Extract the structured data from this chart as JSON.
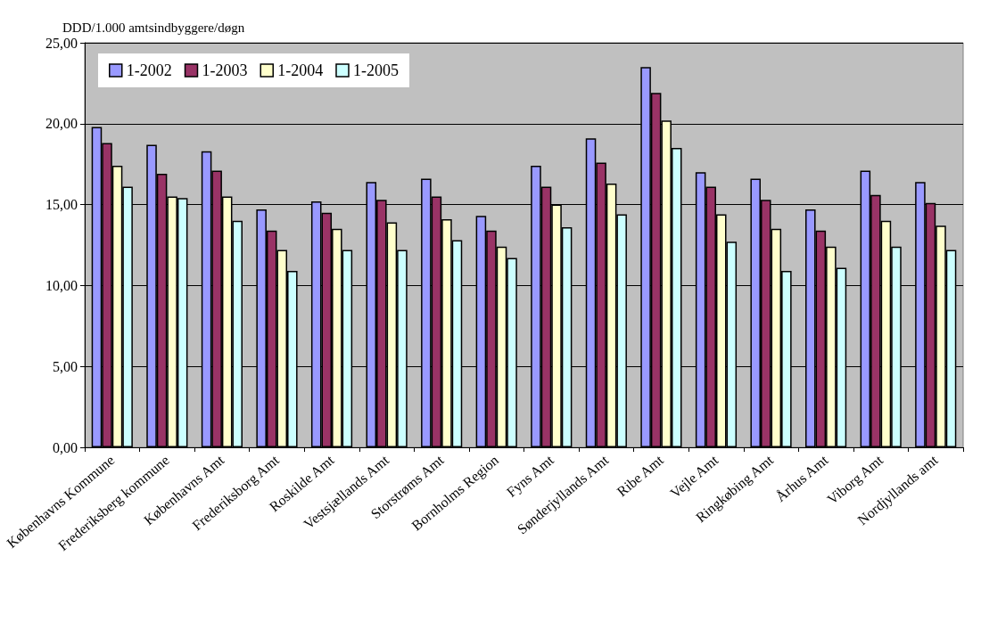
{
  "chart_data": {
    "type": "bar",
    "ylabel": "DDD/1.000 amtsindbyggere/døgn",
    "categories": [
      "Københavns Kommune",
      "Frederiksberg kommune",
      "Københavns Amt",
      "Frederiksborg Amt",
      "Roskilde Amt",
      "Vestsjællands Amt",
      "Storstrøms Amt",
      "Bornholms Region",
      "Fyns Amt",
      "Sønderjyllands Amt",
      "Ribe Amt",
      "Vejle Amt",
      "Ringkøbing Amt",
      "Århus Amt",
      "Viborg Amt",
      "Nordjyllands amt"
    ],
    "series": [
      {
        "name": "1-2002",
        "color": "#9999ff",
        "values": [
          19.8,
          18.7,
          18.3,
          14.7,
          15.2,
          16.4,
          16.6,
          14.3,
          17.4,
          19.1,
          23.5,
          17.0,
          16.6,
          14.7,
          17.1,
          16.4
        ]
      },
      {
        "name": "1-2003",
        "color": "#993366",
        "values": [
          18.8,
          16.9,
          17.1,
          13.4,
          14.5,
          15.3,
          15.5,
          13.4,
          16.1,
          17.6,
          21.9,
          16.1,
          15.3,
          13.4,
          15.6,
          15.1
        ]
      },
      {
        "name": "1-2004",
        "color": "#ffffcc",
        "values": [
          17.4,
          15.5,
          15.5,
          12.2,
          13.5,
          13.9,
          14.1,
          12.4,
          15.0,
          16.3,
          20.2,
          14.4,
          13.5,
          12.4,
          14.0,
          13.7
        ]
      },
      {
        "name": "1-2005",
        "color": "#ccffff",
        "values": [
          16.1,
          15.4,
          14.0,
          10.9,
          12.2,
          12.2,
          12.8,
          11.7,
          13.6,
          14.4,
          18.5,
          12.7,
          10.9,
          11.1,
          12.4,
          12.2
        ]
      }
    ],
    "ylim": [
      0,
      25
    ],
    "yticks": [
      {
        "value": 0,
        "label": "0,00"
      },
      {
        "value": 5,
        "label": "5,00"
      },
      {
        "value": 10,
        "label": "10,00"
      },
      {
        "value": 15,
        "label": "15,00"
      },
      {
        "value": 20,
        "label": "20,00"
      },
      {
        "value": 25,
        "label": "25,00"
      }
    ],
    "grid": "y",
    "legend": "top left"
  }
}
